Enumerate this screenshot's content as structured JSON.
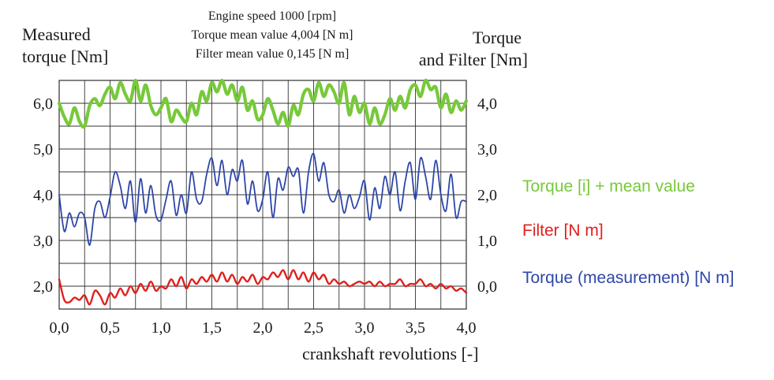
{
  "info": {
    "line1": "Engine speed 1000 [rpm]",
    "line2": "Torque mean value 4,004 [N m]",
    "line3": "Filter mean value 0,145 [N m]"
  },
  "left_axis": {
    "title_line1": "Measured",
    "title_line2": "torque [Nm]"
  },
  "right_axis": {
    "title_line1": "Torque",
    "title_line2": "and Filter [Nm]"
  },
  "x_axis": {
    "title": "crankshaft revolutions [-]"
  },
  "legend": {
    "green": "Torque [i] + mean value",
    "red": "Filter [N m]",
    "blue": "Torque (measurement) [N m]"
  },
  "chart_data": {
    "type": "line",
    "title": "",
    "xlabel": "crankshaft revolutions [-]",
    "ylabel_left": "Measured torque [Nm]",
    "ylabel_right": "Torque and Filter [Nm]",
    "xlim": [
      0,
      4
    ],
    "ylim_left": [
      1.5,
      6.5
    ],
    "ylim_right": [
      -0.5,
      4.5
    ],
    "grid": true,
    "x_ticks": [
      "0,0",
      "0,5",
      "1,0",
      "1,5",
      "2,0",
      "2,5",
      "3,0",
      "3,5",
      "4,0"
    ],
    "x_tick_values": [
      0,
      0.5,
      1,
      1.5,
      2,
      2.5,
      3,
      3.5,
      4
    ],
    "y_left_ticks": [
      "2,0",
      "3,0",
      "4,0",
      "5,0",
      "6,0"
    ],
    "y_left_tick_values": [
      2,
      3,
      4,
      5,
      6
    ],
    "y_right_ticks": [
      "0,0",
      "1,0",
      "2,0",
      "3,0",
      "4,0"
    ],
    "y_right_tick_values": [
      0,
      1,
      2,
      3,
      4
    ],
    "series": [
      {
        "name": "Torque [i] + mean value",
        "axis": "left",
        "color": "#77c93a",
        "x": [
          0.0,
          0.05,
          0.1,
          0.15,
          0.2,
          0.25,
          0.3,
          0.35,
          0.4,
          0.45,
          0.5,
          0.55,
          0.6,
          0.65,
          0.7,
          0.75,
          0.8,
          0.85,
          0.9,
          0.95,
          1.0,
          1.05,
          1.1,
          1.15,
          1.2,
          1.25,
          1.3,
          1.35,
          1.4,
          1.45,
          1.5,
          1.55,
          1.6,
          1.65,
          1.7,
          1.75,
          1.8,
          1.85,
          1.9,
          1.95,
          2.0,
          2.05,
          2.1,
          2.15,
          2.2,
          2.25,
          2.3,
          2.35,
          2.4,
          2.45,
          2.5,
          2.55,
          2.6,
          2.65,
          2.7,
          2.75,
          2.8,
          2.85,
          2.9,
          2.95,
          3.0,
          3.05,
          3.1,
          3.15,
          3.2,
          3.25,
          3.3,
          3.35,
          3.4,
          3.45,
          3.5,
          3.55,
          3.6,
          3.65,
          3.7,
          3.75,
          3.8,
          3.85,
          3.9,
          3.95,
          4.0
        ],
        "values": [
          6.0,
          5.7,
          5.55,
          5.9,
          5.6,
          5.5,
          5.95,
          6.1,
          5.95,
          6.2,
          6.35,
          6.1,
          6.45,
          6.2,
          6.05,
          6.5,
          6.05,
          6.4,
          5.95,
          5.75,
          5.9,
          6.1,
          5.6,
          5.85,
          5.7,
          5.6,
          6.0,
          5.75,
          6.25,
          6.05,
          6.45,
          6.25,
          6.5,
          6.2,
          6.4,
          6.05,
          6.35,
          5.85,
          6.05,
          5.65,
          5.75,
          6.1,
          5.85,
          5.55,
          5.8,
          5.5,
          5.95,
          5.75,
          6.2,
          6.3,
          6.05,
          6.45,
          6.15,
          6.4,
          6.25,
          6.0,
          6.45,
          5.75,
          6.15,
          5.8,
          6.0,
          5.55,
          5.9,
          5.55,
          5.75,
          6.1,
          5.85,
          6.15,
          5.9,
          6.3,
          6.4,
          6.15,
          6.5,
          6.3,
          6.35,
          5.9,
          6.2,
          5.8,
          6.05,
          5.85,
          6.05
        ]
      },
      {
        "name": "Torque (measurement) [N m]",
        "axis": "right",
        "color": "#2d46a8",
        "x": [
          0.0,
          0.05,
          0.1,
          0.15,
          0.2,
          0.25,
          0.3,
          0.35,
          0.4,
          0.45,
          0.5,
          0.55,
          0.6,
          0.65,
          0.7,
          0.75,
          0.8,
          0.85,
          0.9,
          0.95,
          1.0,
          1.05,
          1.1,
          1.15,
          1.2,
          1.25,
          1.3,
          1.35,
          1.4,
          1.45,
          1.5,
          1.55,
          1.6,
          1.65,
          1.7,
          1.75,
          1.8,
          1.85,
          1.9,
          1.95,
          2.0,
          2.05,
          2.1,
          2.15,
          2.2,
          2.25,
          2.3,
          2.35,
          2.4,
          2.45,
          2.5,
          2.55,
          2.6,
          2.65,
          2.7,
          2.75,
          2.8,
          2.85,
          2.9,
          2.95,
          3.0,
          3.05,
          3.1,
          3.15,
          3.2,
          3.25,
          3.3,
          3.35,
          3.4,
          3.45,
          3.5,
          3.55,
          3.6,
          3.65,
          3.7,
          3.75,
          3.8,
          3.85,
          3.9,
          3.95,
          4.0
        ],
        "values": [
          2.0,
          1.2,
          1.6,
          1.3,
          1.6,
          1.5,
          0.9,
          1.7,
          1.85,
          1.5,
          1.95,
          2.5,
          2.2,
          1.7,
          2.3,
          1.4,
          2.35,
          1.6,
          2.2,
          1.55,
          1.45,
          1.9,
          2.3,
          1.55,
          2.0,
          1.6,
          2.5,
          1.9,
          1.85,
          2.45,
          2.8,
          2.2,
          2.75,
          2.0,
          2.55,
          2.3,
          2.75,
          1.8,
          2.3,
          1.65,
          1.9,
          2.5,
          1.5,
          2.35,
          2.1,
          2.6,
          2.4,
          2.55,
          1.6,
          2.5,
          2.9,
          2.3,
          2.7,
          2.0,
          1.85,
          2.1,
          1.6,
          2.0,
          1.7,
          1.95,
          2.3,
          1.45,
          2.15,
          1.7,
          2.4,
          2.0,
          2.5,
          1.65,
          2.3,
          2.7,
          1.9,
          2.8,
          2.4,
          1.9,
          2.75,
          2.0,
          1.65,
          2.45,
          1.5,
          1.85,
          1.85
        ]
      },
      {
        "name": "Filter [N m]",
        "axis": "right",
        "color": "#e0201c",
        "x": [
          0.0,
          0.05,
          0.1,
          0.15,
          0.2,
          0.25,
          0.3,
          0.35,
          0.4,
          0.45,
          0.5,
          0.55,
          0.6,
          0.65,
          0.7,
          0.75,
          0.8,
          0.85,
          0.9,
          0.95,
          1.0,
          1.05,
          1.1,
          1.15,
          1.2,
          1.25,
          1.3,
          1.35,
          1.4,
          1.45,
          1.5,
          1.55,
          1.6,
          1.65,
          1.7,
          1.75,
          1.8,
          1.85,
          1.9,
          1.95,
          2.0,
          2.05,
          2.1,
          2.15,
          2.2,
          2.25,
          2.3,
          2.35,
          2.4,
          2.45,
          2.5,
          2.55,
          2.6,
          2.65,
          2.7,
          2.75,
          2.8,
          2.85,
          2.9,
          2.95,
          3.0,
          3.05,
          3.1,
          3.15,
          3.2,
          3.25,
          3.3,
          3.35,
          3.4,
          3.45,
          3.5,
          3.55,
          3.6,
          3.65,
          3.7,
          3.75,
          3.8,
          3.85,
          3.9,
          3.95,
          4.0
        ],
        "values": [
          0.15,
          -0.3,
          -0.35,
          -0.25,
          -0.3,
          -0.2,
          -0.4,
          -0.1,
          -0.2,
          -0.4,
          -0.15,
          -0.25,
          -0.05,
          -0.2,
          0.0,
          -0.15,
          0.05,
          -0.1,
          0.1,
          -0.1,
          0.0,
          -0.05,
          0.15,
          0.0,
          0.2,
          -0.05,
          0.15,
          0.05,
          0.2,
          0.1,
          0.25,
          0.1,
          0.3,
          0.1,
          0.25,
          0.05,
          0.2,
          0.1,
          0.25,
          0.05,
          0.2,
          0.15,
          0.3,
          0.2,
          0.35,
          0.15,
          0.35,
          0.15,
          0.3,
          0.1,
          0.3,
          0.15,
          0.25,
          0.05,
          0.15,
          0.05,
          0.1,
          0.0,
          0.05,
          0.1,
          0.05,
          0.1,
          0.0,
          0.1,
          0.0,
          0.05,
          0.05,
          0.15,
          0.0,
          0.05,
          0.05,
          0.15,
          0.0,
          0.05,
          -0.05,
          0.05,
          -0.05,
          0.0,
          -0.1,
          -0.05,
          -0.15
        ]
      }
    ]
  }
}
